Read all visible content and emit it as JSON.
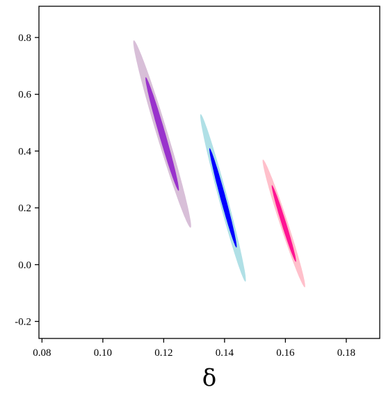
{
  "chart_data": {
    "type": "contour",
    "title": "",
    "xlabel": "δ",
    "ylabel": "",
    "xlim": [
      0.079,
      0.191
    ],
    "ylim": [
      -0.26,
      0.91
    ],
    "x_ticks": [
      "0.08",
      "0.10",
      "0.12",
      "0.14",
      "0.16",
      "0.18"
    ],
    "y_ticks": [
      "-0.2",
      "0.0",
      "0.2",
      "0.4",
      "0.6",
      "0.8"
    ],
    "x_tick_values": [
      0.08,
      0.1,
      0.12,
      0.14,
      0.16,
      0.18
    ],
    "y_tick_values": [
      -0.2,
      0.0,
      0.2,
      0.4,
      0.6,
      0.8
    ],
    "grid": false,
    "legend": "none",
    "contours": [
      {
        "center": [
          0.1195,
          0.46
        ],
        "confidence_regions": [
          {
            "level": "outer",
            "color": "#d8bfd8",
            "x_range": [
              0.11,
              0.129
            ],
            "y_range": [
              0.13,
              0.79
            ]
          },
          {
            "level": "inner",
            "color": "#9932cc",
            "x_range": [
              0.114,
              0.125
            ],
            "y_range": [
              0.25,
              0.65
            ]
          }
        ]
      },
      {
        "center": [
          0.1395,
          0.235
        ],
        "confidence_regions": [
          {
            "level": "outer",
            "color": "#b0e0e6",
            "x_range": [
              0.132,
              0.147
            ],
            "y_range": [
              -0.06,
              0.53
            ]
          },
          {
            "level": "inner",
            "color": "#0000ff",
            "x_range": [
              0.135,
              0.144
            ],
            "y_range": [
              0.05,
              0.4
            ]
          }
        ]
      },
      {
        "center": [
          0.1595,
          0.145
        ],
        "confidence_regions": [
          {
            "level": "outer",
            "color": "#ffc0cb",
            "x_range": [
              0.152,
              0.166
            ],
            "y_range": [
              -0.08,
              0.37
            ]
          },
          {
            "level": "inner",
            "color": "#ff1493",
            "x_range": [
              0.155,
              0.163
            ],
            "y_range": [
              0.02,
              0.29
            ]
          }
        ]
      }
    ]
  }
}
